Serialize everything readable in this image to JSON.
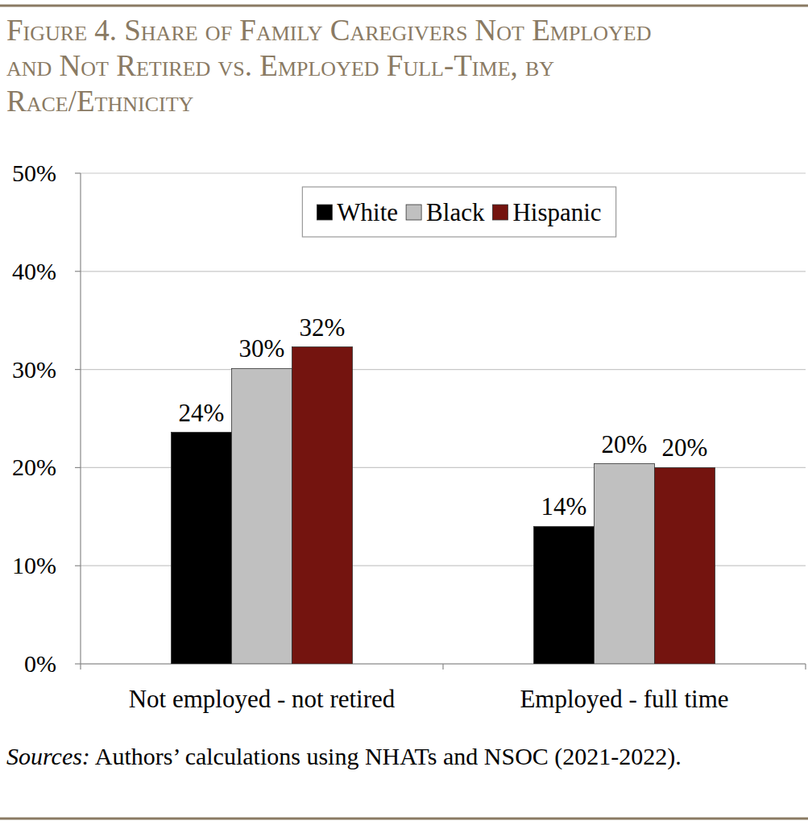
{
  "chart_data": {
    "type": "bar",
    "title": "Figure 4. Share of Family Caregivers Not Employed and Not Retired vs. Employed Full-Time, by Race/Ethnicity",
    "source_label": "Sources:",
    "source": "Authors’ calculations using NHATs and NSOC (2021-2022).",
    "categories": [
      "Not employed - not retired",
      "Employed - full time"
    ],
    "series": [
      {
        "name": "White",
        "color": "#000000",
        "values": [
          23.6,
          14.0
        ],
        "value_labels": [
          "24%",
          "14%"
        ]
      },
      {
        "name": "Black",
        "color": "#c0c0c0",
        "values": [
          30.1,
          20.4
        ],
        "value_labels": [
          "30%",
          "20%"
        ]
      },
      {
        "name": "Hispanic",
        "color": "#74140f",
        "values": [
          32.3,
          20.0
        ],
        "value_labels": [
          "32%",
          "20%"
        ]
      }
    ],
    "ylim": [
      0,
      50
    ],
    "yticks": [
      {
        "value": 0,
        "label": "0%"
      },
      {
        "value": 10,
        "label": "10%"
      },
      {
        "value": 20,
        "label": "20%"
      },
      {
        "value": 30,
        "label": "30%"
      },
      {
        "value": 40,
        "label": "40%"
      },
      {
        "value": 50,
        "label": "50%"
      }
    ],
    "grid": true,
    "legend": "top",
    "data_labels": true
  }
}
